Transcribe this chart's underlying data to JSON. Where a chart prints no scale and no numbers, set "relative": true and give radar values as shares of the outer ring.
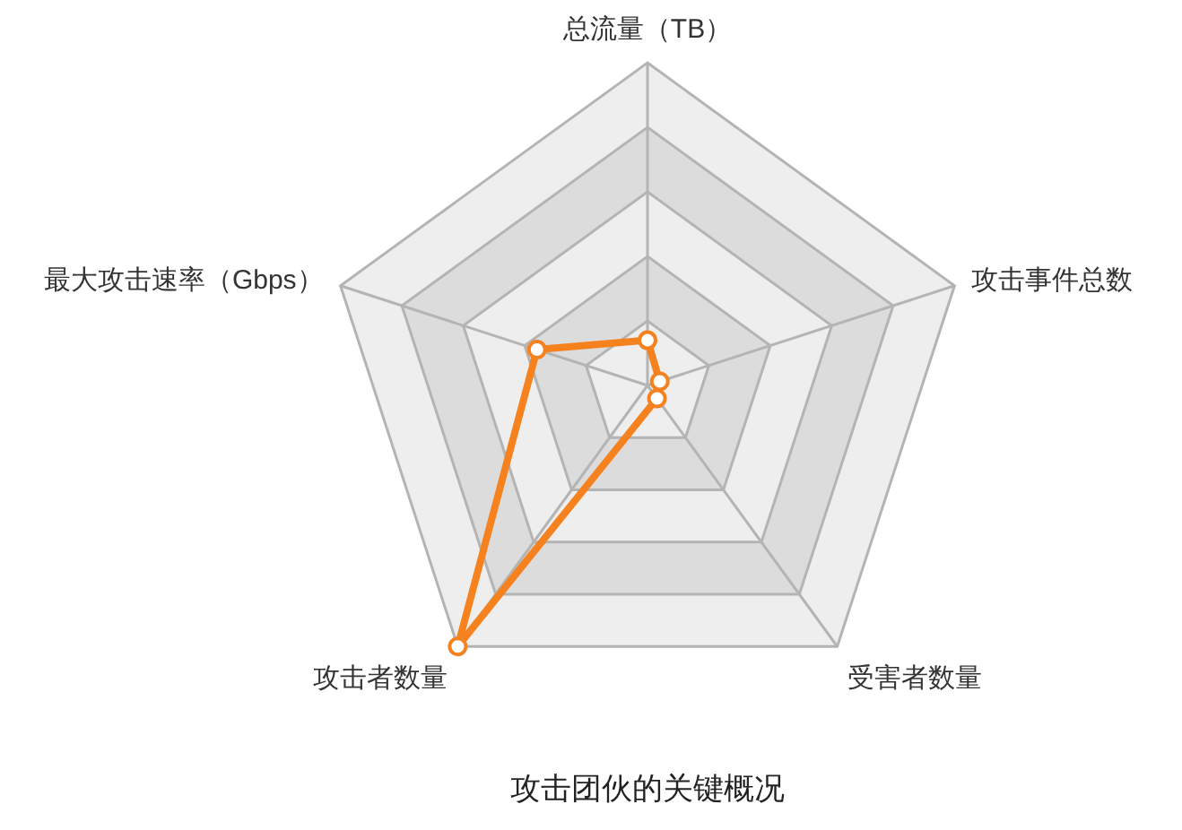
{
  "chart_data": {
    "type": "radar",
    "title": "攻击团伙的关键概况",
    "categories": [
      "总流量（TB）",
      "攻击事件总数",
      "受害者数量",
      "攻击者数量",
      "最大攻击速率（Gbps）"
    ],
    "relative": true,
    "grid": true,
    "marker": "circle",
    "line_style": "solid",
    "series": [
      {
        "color": "#f5821f",
        "values": [
          0.14,
          0.04,
          0.05,
          1,
          0.36
        ]
      }
    ]
  }
}
